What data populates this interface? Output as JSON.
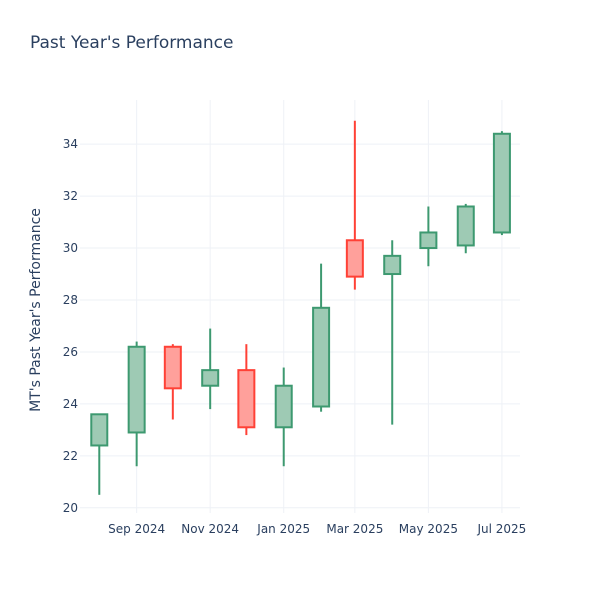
{
  "chart_data": {
    "type": "candlestick",
    "title": "Past Year's Performance",
    "xlabel": "",
    "ylabel": "MT's Past Year's Performance",
    "ylim": [
      19.8,
      35.7
    ],
    "yticks": [
      20,
      22,
      24,
      26,
      28,
      30,
      32,
      34
    ],
    "xticks": [
      {
        "label": "Sep 2024",
        "date": "2024-09-01"
      },
      {
        "label": "Nov 2024",
        "date": "2024-11-01"
      },
      {
        "label": "Jan 2025",
        "date": "2025-01-01"
      },
      {
        "label": "Mar 2025",
        "date": "2025-03-01"
      },
      {
        "label": "May 2025",
        "date": "2025-05-01"
      },
      {
        "label": "Jul 2025",
        "date": "2025-07-01"
      }
    ],
    "xrange": [
      "2024-07-16",
      "2025-07-16"
    ],
    "grid": true,
    "increasing_color": "#3d9970",
    "increasing_fill": "#9ecab4",
    "decreasing_color": "#ff4136",
    "decreasing_fill": "#ffa09b",
    "candles": [
      {
        "date": "2024-08-01",
        "open": 22.4,
        "high": 23.6,
        "low": 20.5,
        "close": 23.6
      },
      {
        "date": "2024-09-01",
        "open": 22.9,
        "high": 26.4,
        "low": 21.6,
        "close": 26.2
      },
      {
        "date": "2024-10-01",
        "open": 26.2,
        "high": 26.3,
        "low": 23.4,
        "close": 24.6
      },
      {
        "date": "2024-11-01",
        "open": 24.7,
        "high": 26.9,
        "low": 23.8,
        "close": 25.3
      },
      {
        "date": "2024-12-01",
        "open": 25.3,
        "high": 26.3,
        "low": 22.8,
        "close": 23.1
      },
      {
        "date": "2025-01-01",
        "open": 23.1,
        "high": 25.4,
        "low": 21.6,
        "close": 24.7
      },
      {
        "date": "2025-02-01",
        "open": 23.9,
        "high": 29.4,
        "low": 23.7,
        "close": 27.7
      },
      {
        "date": "2025-03-01",
        "open": 30.3,
        "high": 34.9,
        "low": 28.4,
        "close": 28.9
      },
      {
        "date": "2025-04-01",
        "open": 29.0,
        "high": 30.3,
        "low": 23.2,
        "close": 29.7
      },
      {
        "date": "2025-05-01",
        "open": 30.0,
        "high": 31.6,
        "low": 29.3,
        "close": 30.6
      },
      {
        "date": "2025-06-01",
        "open": 30.1,
        "high": 31.7,
        "low": 29.8,
        "close": 31.6
      },
      {
        "date": "2025-07-01",
        "open": 30.6,
        "high": 34.5,
        "low": 30.5,
        "close": 34.4
      }
    ]
  }
}
